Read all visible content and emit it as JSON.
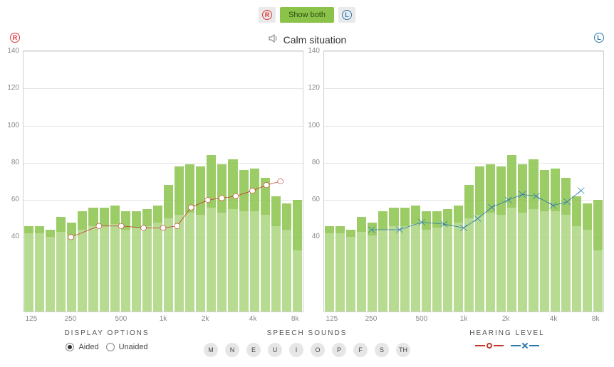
{
  "toggle": {
    "r": "R",
    "showBoth": "Show both",
    "l": "L"
  },
  "title": "Calm situation",
  "axis": {
    "y": {
      "min": 0,
      "max": 140,
      "step": 20,
      "labels": [
        140,
        120,
        100,
        80,
        60,
        40
      ]
    },
    "x": {
      "ticks": [
        {
          "pos": 0.03,
          "label": "125"
        },
        {
          "pos": 0.17,
          "label": "250"
        },
        {
          "pos": 0.35,
          "label": "500"
        },
        {
          "pos": 0.5,
          "label": "1k"
        },
        {
          "pos": 0.65,
          "label": "2k"
        },
        {
          "pos": 0.82,
          "label": "4k"
        },
        {
          "pos": 0.97,
          "label": "8k"
        }
      ]
    }
  },
  "colors": {
    "aidedBar": "#8bc34a",
    "unaidedBar": "#c5e1a5",
    "grid": "#e5e5e5",
    "rightLine": "#c0392b",
    "rightMarkerFill": "#ffffff",
    "leftLine": "#2a7ab0",
    "background": "#ffffff"
  },
  "bars": {
    "aided": [
      46,
      46,
      44,
      51,
      48,
      54,
      56,
      56,
      57,
      54,
      54,
      55,
      57,
      68,
      78,
      79,
      78,
      84,
      79,
      82,
      76,
      77,
      72,
      62,
      58,
      60
    ],
    "unaided": [
      42,
      42,
      40,
      43,
      41,
      44,
      46,
      46,
      47,
      44,
      45,
      46,
      48,
      50,
      52,
      53,
      52,
      56,
      53,
      55,
      54,
      54,
      52,
      46,
      44,
      33
    ]
  },
  "seriesRight": {
    "color": "#c0392b",
    "marker": "circle",
    "points": [
      {
        "x": 0.17,
        "y": 40
      },
      {
        "x": 0.27,
        "y": 46
      },
      {
        "x": 0.35,
        "y": 46
      },
      {
        "x": 0.43,
        "y": 45
      },
      {
        "x": 0.5,
        "y": 45
      },
      {
        "x": 0.55,
        "y": 46
      },
      {
        "x": 0.6,
        "y": 56
      },
      {
        "x": 0.66,
        "y": 60
      },
      {
        "x": 0.71,
        "y": 61
      },
      {
        "x": 0.76,
        "y": 62
      },
      {
        "x": 0.82,
        "y": 65
      },
      {
        "x": 0.87,
        "y": 68
      },
      {
        "x": 0.92,
        "y": 70
      }
    ]
  },
  "seriesLeft": {
    "color": "#2a7ab0",
    "marker": "x",
    "points": [
      {
        "x": 0.17,
        "y": 44
      },
      {
        "x": 0.27,
        "y": 44
      },
      {
        "x": 0.35,
        "y": 48
      },
      {
        "x": 0.43,
        "y": 47
      },
      {
        "x": 0.5,
        "y": 45
      },
      {
        "x": 0.55,
        "y": 50
      },
      {
        "x": 0.6,
        "y": 56
      },
      {
        "x": 0.66,
        "y": 60
      },
      {
        "x": 0.71,
        "y": 63
      },
      {
        "x": 0.76,
        "y": 62
      },
      {
        "x": 0.82,
        "y": 57
      },
      {
        "x": 0.87,
        "y": 59
      },
      {
        "x": 0.92,
        "y": 65
      }
    ]
  },
  "legend": {
    "displayOptions": {
      "title": "DISPLAY OPTIONS",
      "aided": "Aided",
      "unaided": "Unaided",
      "selected": "aided"
    },
    "speechSounds": {
      "title": "SPEECH SOUNDS",
      "items": [
        "M",
        "N",
        "E",
        "U",
        "I",
        "O",
        "P",
        "F",
        "S",
        "TH"
      ]
    },
    "hearingLevel": {
      "title": "HEARING LEVEL"
    }
  }
}
